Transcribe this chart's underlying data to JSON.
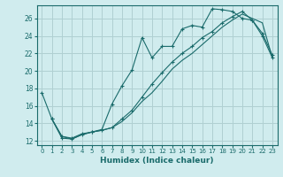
{
  "xlabel": "Humidex (Indice chaleur)",
  "bg_color": "#d0ecee",
  "grid_color": "#b0d0d2",
  "line_color": "#1a6b6b",
  "xlim": [
    -0.5,
    23.5
  ],
  "ylim": [
    11.5,
    27.5
  ],
  "yticks": [
    12,
    14,
    16,
    18,
    20,
    22,
    24,
    26
  ],
  "xticks": [
    0,
    1,
    2,
    3,
    4,
    5,
    6,
    7,
    8,
    9,
    10,
    11,
    12,
    13,
    14,
    15,
    16,
    17,
    18,
    19,
    20,
    21,
    22,
    23
  ],
  "curve1_x": [
    0,
    1,
    2,
    3,
    4,
    5,
    6,
    7,
    8,
    9,
    10,
    11,
    12,
    13,
    14,
    15,
    16,
    17,
    18,
    19,
    20,
    21,
    22,
    23
  ],
  "curve1_y": [
    17.5,
    14.5,
    12.5,
    12.3,
    12.8,
    13.0,
    13.3,
    16.2,
    18.3,
    20.1,
    23.8,
    21.5,
    22.8,
    22.8,
    24.8,
    25.2,
    25.0,
    27.1,
    27.0,
    26.8,
    26.0,
    25.8,
    24.0,
    21.5
  ],
  "curve2_x": [
    1,
    2,
    3,
    4,
    5,
    6,
    7,
    8,
    9,
    10,
    11,
    12,
    13,
    14,
    15,
    16,
    17,
    18,
    19,
    20,
    21,
    22,
    23
  ],
  "curve2_y": [
    14.5,
    12.5,
    12.2,
    12.7,
    13.0,
    13.2,
    13.5,
    14.2,
    15.2,
    16.5,
    17.5,
    18.8,
    20.2,
    21.2,
    22.0,
    23.0,
    24.0,
    25.0,
    25.8,
    26.5,
    26.0,
    25.5,
    21.5
  ],
  "curve3_x": [
    1,
    2,
    3,
    4,
    5,
    6,
    7,
    8,
    9,
    10,
    11,
    12,
    13,
    14,
    15,
    16,
    17,
    18,
    19,
    20,
    21,
    22,
    23
  ],
  "curve3_y": [
    14.5,
    12.3,
    12.2,
    12.7,
    13.0,
    13.2,
    13.5,
    14.5,
    15.5,
    17.0,
    18.5,
    19.8,
    21.0,
    22.0,
    22.8,
    23.8,
    24.5,
    25.5,
    26.2,
    26.8,
    25.8,
    24.3,
    21.8
  ]
}
